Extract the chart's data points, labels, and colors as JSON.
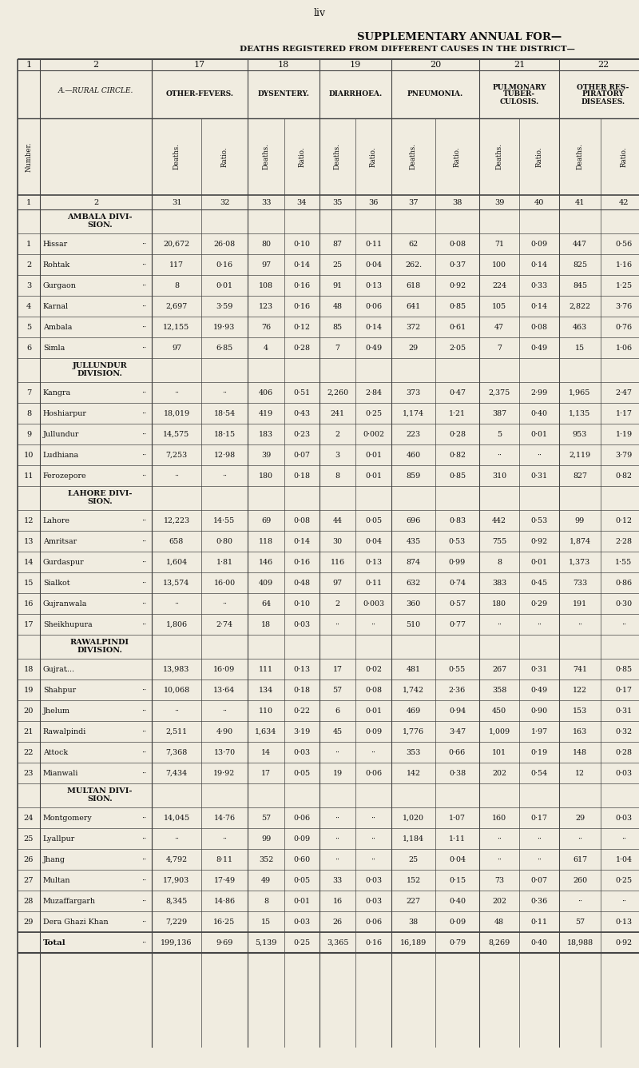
{
  "page_number": "liv",
  "title_line1": "SUPPLEMENTARY ANNUAL FOR—",
  "title_line2": "DEATHS REGISTERED FROM DIFFERENT CAUSES IN THE DISTRICT—",
  "bg_color": "#f0ece0",
  "text_color": "#111111",
  "line_color": "#444444",
  "divisions": [
    {
      "name": "AMBALA DIVI-\nSION.",
      "rows": [
        {
          "num": 1,
          "name": "Hissar",
          "d17": "20,672",
          "r17": "26·08",
          "d18": "80",
          "r18": "0·10",
          "d19": "87",
          "r19": "0·11",
          "d20": "62",
          "r20": "0·08",
          "d21": "71",
          "r21": "0·09",
          "d22": "447",
          "r22": "0·56"
        },
        {
          "num": 2,
          "name": "Rohtak",
          "d17": "117",
          "r17": "0·16",
          "d18": "97",
          "r18": "0·14",
          "d19": "25",
          "r19": "0·04",
          "d20": "262.",
          "r20": "0·37",
          "d21": "100",
          "r21": "0·14",
          "d22": "825",
          "r22": "1·16"
        },
        {
          "num": 3,
          "name": "Gurgaon",
          "d17": "8",
          "r17": "0·01",
          "d18": "108",
          "r18": "0·16",
          "d19": "91",
          "r19": "0·13",
          "d20": "618",
          "r20": "0·92",
          "d21": "224",
          "r21": "0·33",
          "d22": "845",
          "r22": "1·25"
        },
        {
          "num": 4,
          "name": "Karnal",
          "d17": "2,697",
          "r17": "3·59",
          "d18": "123",
          "r18": "0·16",
          "d19": "48",
          "r19": "0·06",
          "d20": "641",
          "r20": "0·85",
          "d21": "105",
          "r21": "0·14",
          "d22": "2,822",
          "r22": "3·76"
        },
        {
          "num": 5,
          "name": "Ambala",
          "d17": "12,155",
          "r17": "19·93",
          "d18": "76",
          "r18": "0·12",
          "d19": "85",
          "r19": "0·14",
          "d20": "372",
          "r20": "0·61",
          "d21": "47",
          "r21": "0·08",
          "d22": "463",
          "r22": "0·76"
        },
        {
          "num": 6,
          "name": "Simla",
          "d17": "97",
          "r17": "6·85",
          "d18": "4",
          "r18": "0·28",
          "d19": "7",
          "r19": "0·49",
          "d20": "29",
          "r20": "2·05",
          "d21": "7",
          "r21": "0·49",
          "d22": "15",
          "r22": "1·06"
        }
      ]
    },
    {
      "name": "JULLUNDUR\nDIVISION.",
      "rows": [
        {
          "num": 7,
          "name": "Kangra",
          "d17": "··",
          "r17": "··",
          "d18": "406",
          "r18": "0·51",
          "d19": "2,260",
          "r19": "2·84",
          "d20": "373",
          "r20": "0·47",
          "d21": "2,375",
          "r21": "2·99",
          "d22": "1,965",
          "r22": "2·47"
        },
        {
          "num": 8,
          "name": "Hoshiarpur",
          "d17": "18,019",
          "r17": "18·54",
          "d18": "419",
          "r18": "0·43",
          "d19": "241",
          "r19": "0·25",
          "d20": "1,174",
          "r20": "1·21",
          "d21": "387",
          "r21": "0·40",
          "d22": "1,135",
          "r22": "1·17"
        },
        {
          "num": 9,
          "name": "Jullundur",
          "d17": "14,575",
          "r17": "18·15",
          "d18": "183",
          "r18": "0·23",
          "d19": "2",
          "r19": "0·002",
          "d20": "223",
          "r20": "0·28",
          "d21": "5",
          "r21": "0·01",
          "d22": "953",
          "r22": "1·19"
        },
        {
          "num": 10,
          "name": "Ludhiana",
          "d17": "7,253",
          "r17": "12·98",
          "d18": "39",
          "r18": "0·07",
          "d19": "3",
          "r19": "0·01",
          "d20": "460",
          "r20": "0·82",
          "d21": "··",
          "r21": "··",
          "d22": "2,119",
          "r22": "3·79"
        },
        {
          "num": 11,
          "name": "Ferozepore",
          "d17": "··",
          "r17": "··",
          "d18": "180",
          "r18": "0·18",
          "d19": "8",
          "r19": "0·01",
          "d20": "859",
          "r20": "0·85",
          "d21": "310",
          "r21": "0·31",
          "d22": "827",
          "r22": "0·82"
        }
      ]
    },
    {
      "name": "LAHORE DIVI-\nSION.",
      "rows": [
        {
          "num": 12,
          "name": "Lahore",
          "d17": "12,223",
          "r17": "14·55",
          "d18": "69",
          "r18": "0·08",
          "d19": "44",
          "r19": "0·05",
          "d20": "696",
          "r20": "0·83",
          "d21": "442",
          "r21": "0·53",
          "d22": "99",
          "r22": "0·12"
        },
        {
          "num": 13,
          "name": "Amritsar",
          "d17": "658",
          "r17": "0·80",
          "d18": "118",
          "r18": "0·14",
          "d19": "30",
          "r19": "0·04",
          "d20": "435",
          "r20": "0·53",
          "d21": "755",
          "r21": "0·92",
          "d22": "1,874",
          "r22": "2·28"
        },
        {
          "num": 14,
          "name": "Gurdaspur",
          "d17": "1,604",
          "r17": "1·81",
          "d18": "146",
          "r18": "0·16",
          "d19": "116",
          "r19": "0·13",
          "d20": "874",
          "r20": "0·99",
          "d21": "8",
          "r21": "0·01",
          "d22": "1,373",
          "r22": "1·55"
        },
        {
          "num": 15,
          "name": "Sialkot",
          "d17": "13,574",
          "r17": "16·00",
          "d18": "409",
          "r18": "0·48",
          "d19": "97",
          "r19": "0·11",
          "d20": "632",
          "r20": "0·74",
          "d21": "383",
          "r21": "0·45",
          "d22": "733",
          "r22": "0·86"
        },
        {
          "num": 16,
          "name": "Gujranwala",
          "d17": "··",
          "r17": "··",
          "d18": "64",
          "r18": "0·10",
          "d19": "2",
          "r19": "0·003",
          "d20": "360",
          "r20": "0·57",
          "d21": "180",
          "r21": "0·29",
          "d22": "191",
          "r22": "0·30"
        },
        {
          "num": 17,
          "name": "Sheikhupura",
          "d17": "1,806",
          "r17": "2·74",
          "d18": "18",
          "r18": "0·03",
          "d19": "··",
          "r19": "··",
          "d20": "510",
          "r20": "0·77",
          "d21": "··",
          "r21": "··",
          "d22": "··",
          "r22": "··"
        }
      ]
    },
    {
      "name": "RAWALPINDI\nDIVISION.",
      "rows": [
        {
          "num": 18,
          "name": "Gujrat",
          "extra": "....",
          "d17": "13,983",
          "r17": "16·09",
          "d18": "111",
          "r18": "0·13",
          "d19": "17",
          "r19": "0·02",
          "d20": "481",
          "r20": "0·55",
          "d21": "267",
          "r21": "0·31",
          "d22": "741",
          "r22": "0·85"
        },
        {
          "num": 19,
          "name": "Shahpur",
          "d17": "10,068",
          "r17": "13·64",
          "d18": "134",
          "r18": "0·18",
          "d19": "57",
          "r19": "0·08",
          "d20": "1,742",
          "r20": "2·36",
          "d21": "358",
          "r21": "0·49",
          "d22": "122",
          "r22": "0·17"
        },
        {
          "num": 20,
          "name": "Jhelum",
          "d17": "··",
          "r17": "··",
          "d18": "110",
          "r18": "0·22",
          "d19": "6",
          "r19": "0·01",
          "d20": "469",
          "r20": "0·94",
          "d21": "450",
          "r21": "0·90",
          "d22": "153",
          "r22": "0·31"
        },
        {
          "num": 21,
          "name": "Rawalpindi",
          "d17": "2,511",
          "r17": "4·90",
          "d18": "1,634",
          "r18": "3·19",
          "d19": "45",
          "r19": "0·09",
          "d20": "1,776",
          "r20": "3·47",
          "d21": "1,009",
          "r21": "1·97",
          "d22": "163",
          "r22": "0·32"
        },
        {
          "num": 22,
          "name": "Attock",
          "d17": "7,368",
          "r17": "13·70",
          "d18": "14",
          "r18": "0·03",
          "d19": "··",
          "r19": "··",
          "d20": "353",
          "r20": "0·66",
          "d21": "101",
          "r21": "0·19",
          "d22": "148",
          "r22": "0·28"
        },
        {
          "num": 23,
          "name": "Mianwali",
          "d17": "7,434",
          "r17": "19·92",
          "d18": "17",
          "r18": "0·05",
          "d19": "19",
          "r19": "0·06",
          "d20": "142",
          "r20": "0·38",
          "d21": "202",
          "r21": "0·54",
          "d22": "12",
          "r22": "0·03"
        }
      ]
    },
    {
      "name": "MULTAN DIVI-\nSION.",
      "rows": [
        {
          "num": 24,
          "name": "Montgomery",
          "d17": "14,045",
          "r17": "14·76",
          "d18": "57",
          "r18": "0·06",
          "d19": "··",
          "r19": "··",
          "d20": "1,020",
          "r20": "1·07",
          "d21": "160",
          "r21": "0·17",
          "d22": "29",
          "r22": "0·03"
        },
        {
          "num": 25,
          "name": "Lyallpur",
          "d17": "··",
          "r17": "··",
          "d18": "99",
          "r18": "0·09",
          "d19": "··",
          "r19": "··",
          "d20": "1,184",
          "r20": "1·11",
          "d21": "··",
          "r21": "··",
          "d22": "··",
          "r22": "··"
        },
        {
          "num": 26,
          "name": "Jhang",
          "d17": "4,792",
          "r17": "8·11",
          "d18": "352",
          "r18": "0·60",
          "d19": "··",
          "r19": "··",
          "d20": "25",
          "r20": "0·04",
          "d21": "··",
          "r21": "··",
          "d22": "617",
          "r22": "1·04"
        },
        {
          "num": 27,
          "name": "Multan",
          "d17": "17,903",
          "r17": "17·49",
          "d18": "49",
          "r18": "0·05",
          "d19": "33",
          "r19": "0·03",
          "d20": "152",
          "r20": "0·15",
          "d21": "73",
          "r21": "0·07",
          "d22": "260",
          "r22": "0·25"
        },
        {
          "num": 28,
          "name": "Muzaffargarh",
          "d17": "8,345",
          "r17": "14·86",
          "d18": "8",
          "r18": "0·01",
          "d19": "16",
          "r19": "0·03",
          "d20": "227",
          "r20": "0·40",
          "d21": "202",
          "r21": "0·36",
          "d22": "··",
          "r22": "··"
        },
        {
          "num": 29,
          "name": "Dera Ghazi Khan",
          "d17": "7,229",
          "r17": "16·25",
          "d18": "15",
          "r18": "0·03",
          "d19": "26",
          "r19": "0·06",
          "d20": "38",
          "r20": "0·09",
          "d21": "48",
          "r21": "0·11",
          "d22": "57",
          "r22": "0·13"
        }
      ]
    }
  ],
  "total_row": {
    "label": "Total",
    "d17": "199,136",
    "r17": "9·69",
    "d18": "5,139",
    "r18": "0·25",
    "d19": "3,365",
    "r19": "0·16",
    "d20": "16,189",
    "r20": "0·79",
    "d21": "8,269",
    "r21": "0·40",
    "d22": "18,988",
    "r22": "0·92"
  }
}
